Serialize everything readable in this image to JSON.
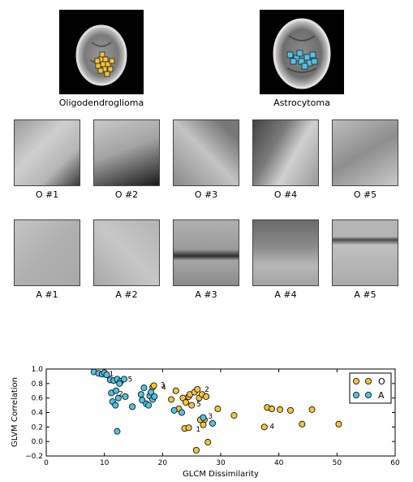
{
  "brains": [
    {
      "caption": "Oligodendroglioma"
    },
    {
      "caption": "Astrocytoma"
    }
  ],
  "patch_rows": [
    {
      "labels": [
        "O #1",
        "O #2",
        "O #3",
        "O #4",
        "O #5"
      ]
    },
    {
      "labels": [
        "A #1",
        "A #2",
        "A #3",
        "A #4",
        "A #5"
      ]
    }
  ],
  "colors": {
    "O": "#f5c33b",
    "A": "#4ec3e6"
  },
  "chart_data": {
    "type": "scatter",
    "xlabel": "GLCM Dissimilarity",
    "ylabel": "GLVM Correlation",
    "xlim": [
      0,
      60
    ],
    "ylim": [
      -0.2,
      1.0
    ],
    "xticks": [
      "0",
      "10",
      "20",
      "30",
      "40",
      "50",
      "60"
    ],
    "yticks": [
      "−0.2",
      "0.0",
      "0.2",
      "0.4",
      "0.6",
      "0.8",
      "1.0"
    ],
    "legend": {
      "placement": "top-right",
      "entries": [
        "O",
        "A"
      ]
    },
    "series": [
      {
        "name": "O",
        "points": [
          [
            18.3,
            0.75
          ],
          [
            18.5,
            0.77
          ],
          [
            21.5,
            0.58
          ],
          [
            22.3,
            0.7
          ],
          [
            22.8,
            0.45
          ],
          [
            23.5,
            0.6
          ],
          [
            24.0,
            0.54
          ],
          [
            24.5,
            0.62
          ],
          [
            24.7,
            0.65
          ],
          [
            25.0,
            0.5
          ],
          [
            25.5,
            0.68
          ],
          [
            26.0,
            0.72
          ],
          [
            26.3,
            0.6
          ],
          [
            26.8,
            0.65
          ],
          [
            27.2,
            0.3
          ],
          [
            27.5,
            0.62
          ],
          [
            29.5,
            0.45
          ],
          [
            23.8,
            0.18
          ],
          [
            24.5,
            0.19
          ],
          [
            27.0,
            0.23
          ],
          [
            32.3,
            0.36
          ],
          [
            26.5,
            0.3
          ],
          [
            27.8,
            -0.01
          ],
          [
            25.8,
            -0.12
          ],
          [
            37.5,
            0.2
          ],
          [
            38.0,
            0.47
          ],
          [
            38.8,
            0.45
          ],
          [
            40.2,
            0.44
          ],
          [
            42.0,
            0.43
          ],
          [
            44.0,
            0.24
          ],
          [
            45.7,
            0.44
          ],
          [
            50.3,
            0.24
          ]
        ]
      },
      {
        "name": "A",
        "points": [
          [
            8.2,
            0.96
          ],
          [
            9.0,
            0.94
          ],
          [
            9.6,
            0.93
          ],
          [
            10.0,
            0.95
          ],
          [
            10.4,
            0.92
          ],
          [
            11.0,
            0.85
          ],
          [
            11.6,
            0.84
          ],
          [
            12.2,
            0.86
          ],
          [
            12.8,
            0.83
          ],
          [
            13.4,
            0.86
          ],
          [
            12.6,
            0.8
          ],
          [
            11.2,
            0.67
          ],
          [
            12.0,
            0.7
          ],
          [
            12.4,
            0.6
          ],
          [
            13.6,
            0.62
          ],
          [
            11.4,
            0.55
          ],
          [
            11.9,
            0.5
          ],
          [
            14.8,
            0.48
          ],
          [
            16.3,
            0.65
          ],
          [
            16.5,
            0.57
          ],
          [
            16.8,
            0.74
          ],
          [
            17.2,
            0.52
          ],
          [
            17.8,
            0.63
          ],
          [
            18.0,
            0.68
          ],
          [
            18.3,
            0.58
          ],
          [
            18.6,
            0.62
          ],
          [
            17.6,
            0.5
          ],
          [
            22.0,
            0.43
          ],
          [
            23.3,
            0.4
          ],
          [
            27.0,
            0.33
          ],
          [
            28.6,
            0.25
          ],
          [
            12.2,
            0.14
          ]
        ]
      }
    ],
    "annotations": [
      {
        "text": "1",
        "x": 10.4,
        "y": 0.93
      },
      {
        "text": "5",
        "x": 13.6,
        "y": 0.86
      },
      {
        "text": "2",
        "x": 12.0,
        "y": 0.66
      },
      {
        "text": "3",
        "x": 19.2,
        "y": 0.78
      },
      {
        "text": "4",
        "x": 19.4,
        "y": 0.75
      },
      {
        "text": "2",
        "x": 26.8,
        "y": 0.72
      },
      {
        "text": "5",
        "x": 25.4,
        "y": 0.52
      },
      {
        "text": "3",
        "x": 27.4,
        "y": 0.35
      },
      {
        "text": "1",
        "x": 25.3,
        "y": 0.17
      },
      {
        "text": "4",
        "x": 38.0,
        "y": 0.21
      }
    ]
  }
}
